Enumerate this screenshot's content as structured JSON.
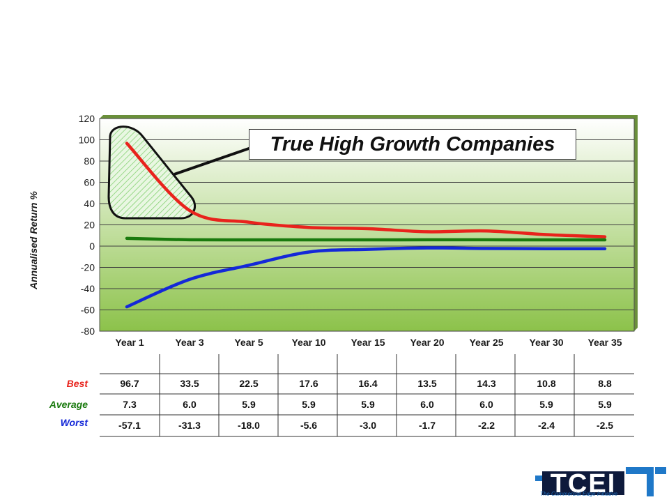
{
  "chart_data": {
    "type": "line",
    "title": "True High Growth Companies",
    "ylabel": "Annualised Return %",
    "xlabel": "",
    "categories": [
      "Year 1",
      "Year 3",
      "Year 5",
      "Year 10",
      "Year 15",
      "Year 20",
      "Year 25",
      "Year 30",
      "Year 35"
    ],
    "ylim": [
      -80,
      120
    ],
    "yticks": [
      120,
      100,
      80,
      60,
      40,
      20,
      0,
      -20,
      -40,
      -60,
      -80
    ],
    "grid": true,
    "series": [
      {
        "name": "Best",
        "color": "#e8231c",
        "values": [
          96.7,
          33.5,
          22.5,
          17.6,
          16.4,
          13.5,
          14.3,
          10.8,
          8.8
        ]
      },
      {
        "name": "Average",
        "color": "#1a7a0e",
        "values": [
          7.3,
          6.0,
          5.9,
          5.9,
          5.9,
          6.0,
          6.0,
          5.9,
          5.9
        ]
      },
      {
        "name": "Worst",
        "color": "#1428d8",
        "values": [
          -57.1,
          -31.3,
          -18.0,
          -5.6,
          -3.0,
          -1.7,
          -2.2,
          -2.4,
          -2.5
        ]
      }
    ],
    "table": {
      "rows": [
        {
          "label": "Best",
          "color": "#e8231c",
          "values": [
            "96.7",
            "33.5",
            "22.5",
            "17.6",
            "16.4",
            "13.5",
            "14.3",
            "10.8",
            "8.8"
          ]
        },
        {
          "label": "Average",
          "color": "#1a7a0e",
          "values": [
            "7.3",
            "6.0",
            "5.9",
            "5.9",
            "5.9",
            "6.0",
            "6.0",
            "5.9",
            "5.9"
          ]
        },
        {
          "label": "Worst",
          "color": "#1428d8",
          "values": [
            "-57.1",
            "-31.3",
            "-18.0",
            "-5.6",
            "-3.0",
            "-1.7",
            "-2.2",
            "-2.4",
            "-2.5"
          ]
        }
      ]
    }
  },
  "logo": {
    "mark": "TCEI",
    "tagline": "The Commercial Edge Initiative",
    "colors": {
      "dark": "#0e1a3c",
      "accent": "#1f78c8"
    }
  }
}
